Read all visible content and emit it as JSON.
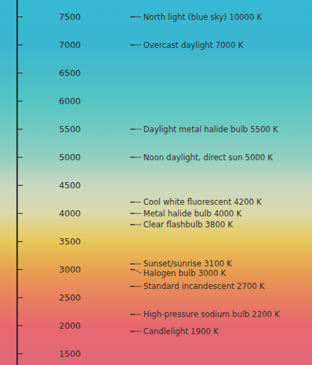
{
  "chart_data": {
    "type": "scale",
    "ylim": [
      1300,
      7800
    ],
    "yticks": [
      7500,
      7000,
      6500,
      6000,
      5500,
      5000,
      4500,
      4000,
      3500,
      3000,
      2500,
      2000,
      1500
    ],
    "annotations": [
      {
        "text": "North light (blue sky) 10000 K",
        "value": 7500
      },
      {
        "text": "Overcast daylight 7000 K",
        "value": 7000
      },
      {
        "text": "Daylight metal halide bulb 5500 K",
        "value": 5500
      },
      {
        "text": "Noon daylight, direct sun 5000 K",
        "value": 5000
      },
      {
        "text": "Cool white fluorescent 4200 K",
        "value": 4200
      },
      {
        "text": "Metal halide bulb 4000 K",
        "value": 4000
      },
      {
        "text": "Clear flashbulb 3800 K",
        "value": 3800
      },
      {
        "text": "Sunset/sunrise 3100 K",
        "value": 3100
      },
      {
        "text": "Halogen bulb 3000 K",
        "value": 3000
      },
      {
        "text": "Standard incandescent 2700 K",
        "value": 2700
      },
      {
        "text": "High-pressure sodium bulb 2200 K",
        "value": 2200
      },
      {
        "text": "Candlelight 1900 K",
        "value": 1900
      }
    ],
    "gradient": {
      "values": [
        7800,
        7000,
        6000,
        5000,
        4500,
        4000,
        3500,
        3000,
        2500,
        2000,
        1300
      ],
      "colors": [
        "#38b8d5",
        "#3ab6d0",
        "#55c4c2",
        "#90cfc0",
        "#c8d8c0",
        "#ddd8a8",
        "#e8c858",
        "#e8a050",
        "#e88060",
        "#e86870",
        "#e06878"
      ]
    },
    "color": "#2a2a2a"
  }
}
